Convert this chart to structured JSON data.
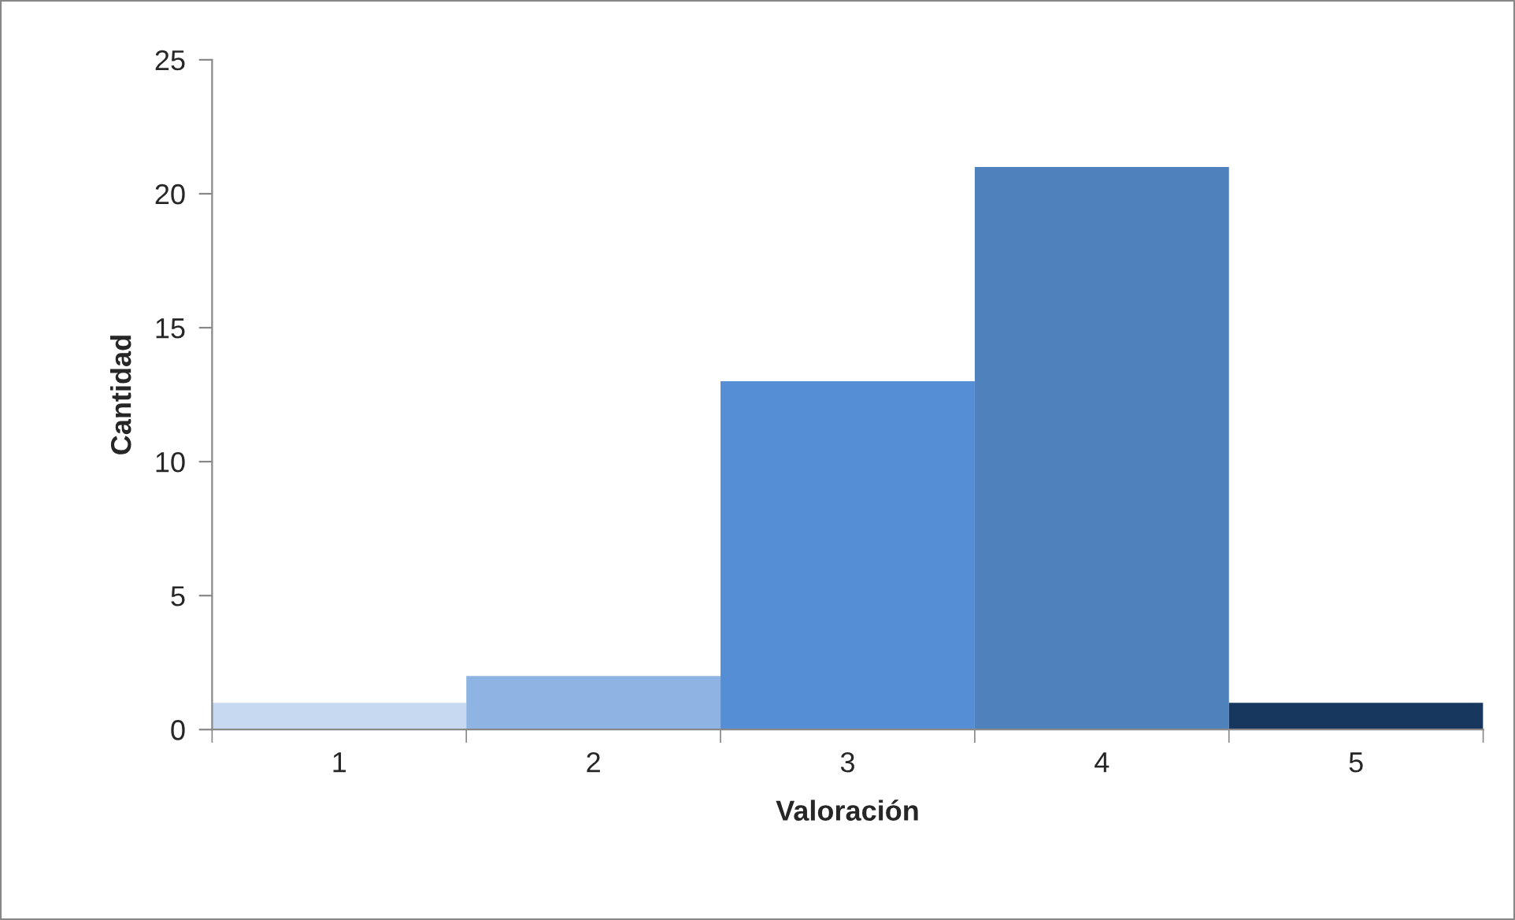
{
  "chart_data": {
    "type": "bar",
    "xlabel": "Valoración",
    "ylabel": "Cantidad",
    "categories": [
      "1",
      "2",
      "3",
      "4",
      "5"
    ],
    "values": [
      1,
      2,
      13,
      21,
      1
    ],
    "colors": [
      "#c6d9f1",
      "#8eb4e3",
      "#558ed5",
      "#4f81bd",
      "#17375e"
    ],
    "ylim": [
      0,
      25
    ],
    "yticks": [
      0,
      5,
      10,
      15,
      20,
      25
    ],
    "grid": false,
    "legend": false
  }
}
